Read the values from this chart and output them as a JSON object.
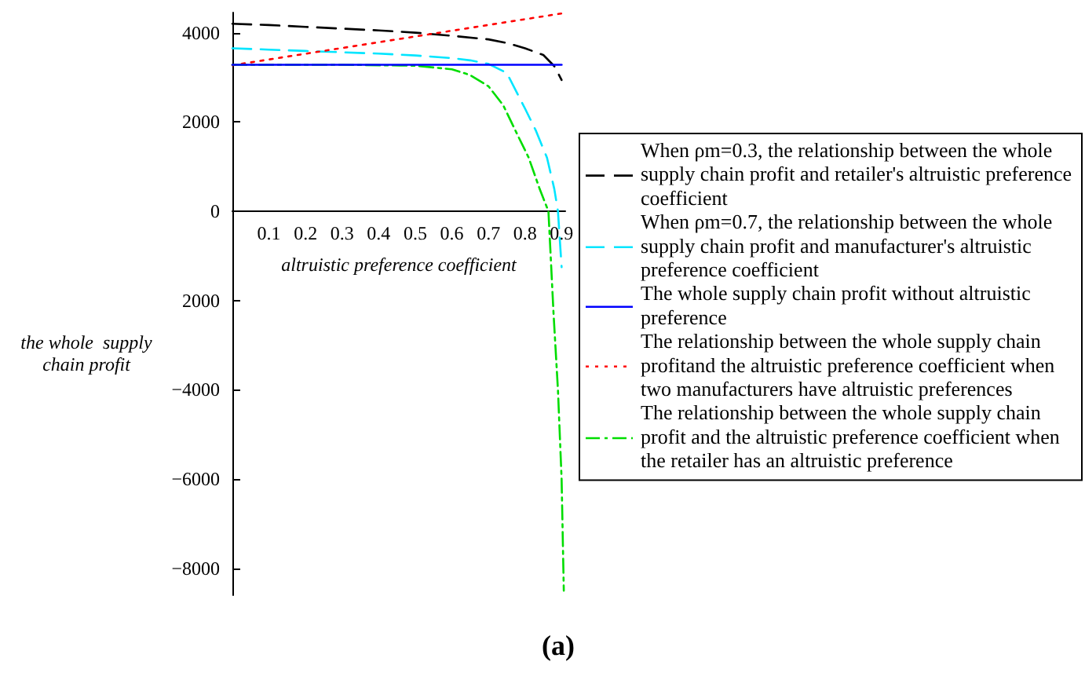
{
  "chart_data": {
    "type": "line",
    "xlabel": "altruistic preference coefficient",
    "ylabel": "the whole  supply chain profit",
    "xlim": [
      0,
      0.91
    ],
    "xticks": [
      0.1,
      0.2,
      0.3,
      0.4,
      0.5,
      0.6,
      0.7,
      0.8,
      0.9
    ],
    "ylim": [
      -8600,
      4450
    ],
    "yticks": [
      {
        "value": -8000,
        "label": "−8000"
      },
      {
        "value": -6000,
        "label": "−6000"
      },
      {
        "value": -4000,
        "label": "−4000"
      },
      {
        "value": -2000,
        "label": "2000"
      },
      0,
      2000,
      4000
    ],
    "grid": false,
    "legend": "right",
    "marker": "none",
    "series": [
      {
        "name": "When ρm=0.3, the relationship between the whole supply chain profit and retailer's altruistic preference coefficient",
        "color": "#000000",
        "line_style": "dashed",
        "x": [
          0,
          0.1,
          0.2,
          0.3,
          0.4,
          0.5,
          0.6,
          0.7,
          0.75,
          0.8,
          0.85,
          0.88,
          0.9
        ],
        "values": [
          4200,
          4170,
          4130,
          4090,
          4050,
          4000,
          3930,
          3850,
          3770,
          3650,
          3500,
          3250,
          2940
        ]
      },
      {
        "name": "When ρm=0.7, the relationship between the whole supply chain profit and manufacturer's altruistic preference coefficient",
        "color": "#00e5ff",
        "line_style": "dashed",
        "x": [
          0,
          0.1,
          0.2,
          0.3,
          0.4,
          0.5,
          0.6,
          0.65,
          0.7,
          0.75,
          0.8,
          0.83,
          0.86,
          0.88,
          0.89,
          0.9
        ],
        "values": [
          3650,
          3620,
          3590,
          3560,
          3530,
          3490,
          3430,
          3380,
          3300,
          3100,
          2300,
          1800,
          1200,
          500,
          0,
          -1250
        ]
      },
      {
        "name": "The whole supply chain profit without altruistic preference",
        "color": "#0000ff",
        "line_style": "solid",
        "x": [
          0,
          0.9
        ],
        "values": [
          3280,
          3280
        ]
      },
      {
        "name": "The relationship between the whole supply chain profitand the altruistic preference coefficient when two manufacturers have altruistic preferences",
        "color": "#ff0000",
        "line_style": "dotted",
        "x": [
          0,
          0.9
        ],
        "values": [
          3270,
          4430
        ]
      },
      {
        "name": "The relationship between the whole supply chain profit and the altruistic preference coefficient when the retailer has an altruistic preference",
        "color": "#00dd00",
        "line_style": "dashdot",
        "x": [
          0,
          0.3,
          0.5,
          0.6,
          0.65,
          0.7,
          0.74,
          0.78,
          0.81,
          0.84,
          0.864,
          0.878,
          0.89,
          0.9,
          0.906
        ],
        "values": [
          3280,
          3280,
          3260,
          3180,
          3050,
          2800,
          2380,
          1700,
          1200,
          500,
          0,
          -2300,
          -4000,
          -6000,
          -8500
        ]
      }
    ],
    "annotations": [
      "(a)"
    ]
  }
}
